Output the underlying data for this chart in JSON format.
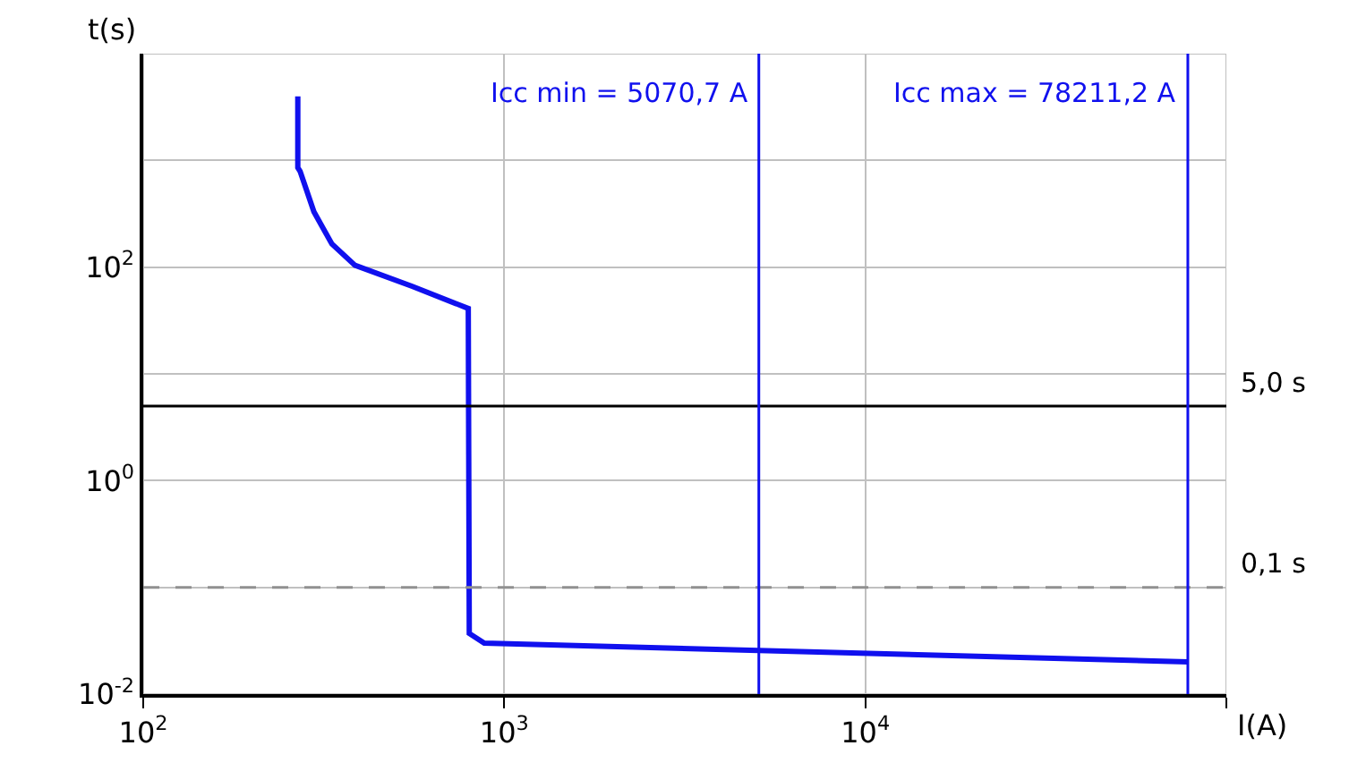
{
  "chart_data": {
    "type": "line",
    "xlabel": "I(A)",
    "ylabel": "t(s)",
    "log": "xy",
    "xlim": [
      100,
      100000
    ],
    "ylim": [
      0.01,
      10000
    ],
    "xticks": [
      {
        "value": 100,
        "label": "10$^{2}$"
      },
      {
        "value": 1000,
        "label": "10$^{3}$"
      },
      {
        "value": 10000,
        "label": "10$^{4}$"
      },
      {
        "value": 100000,
        "label": null
      }
    ],
    "yticks": [
      {
        "value": 0.01,
        "label": "10$^{-2}$"
      },
      {
        "value": 0.1,
        "label": null
      },
      {
        "value": 1,
        "label": "10$^{0}$"
      },
      {
        "value": 10,
        "label": null
      },
      {
        "value": 100,
        "label": "10$^{2}$"
      },
      {
        "value": 1000,
        "label": null
      },
      {
        "value": 10000,
        "label": null
      }
    ],
    "grid": true,
    "marker": "none",
    "line_style": "solid",
    "series": [
      {
        "color": "#1010ee",
        "x": [
          268,
          268,
          272,
          297,
          333,
          386,
          557,
          795,
          795,
          800,
          880,
          78211
        ],
        "values": [
          3981,
          855,
          790,
          330,
          165,
          104,
          66,
          41,
          38,
          0.037,
          0.03,
          0.02
        ]
      }
    ],
    "ref_lines": [
      {
        "axis": "y",
        "value": 5,
        "label": "5,0 s",
        "color": "#000000",
        "line_style": "solid"
      },
      {
        "axis": "y",
        "value": 0.1,
        "label": "0,1 s",
        "color": "#909090",
        "line_style": "dashed"
      },
      {
        "axis": "x",
        "value": 5070.7,
        "label": "Icc min = 5070,7 A",
        "color": "#1010ee",
        "line_style": "solid"
      },
      {
        "axis": "x",
        "value": 78211.2,
        "label": "Icc max = 78211,2 A",
        "color": "#1010ee",
        "line_style": "solid"
      }
    ]
  }
}
